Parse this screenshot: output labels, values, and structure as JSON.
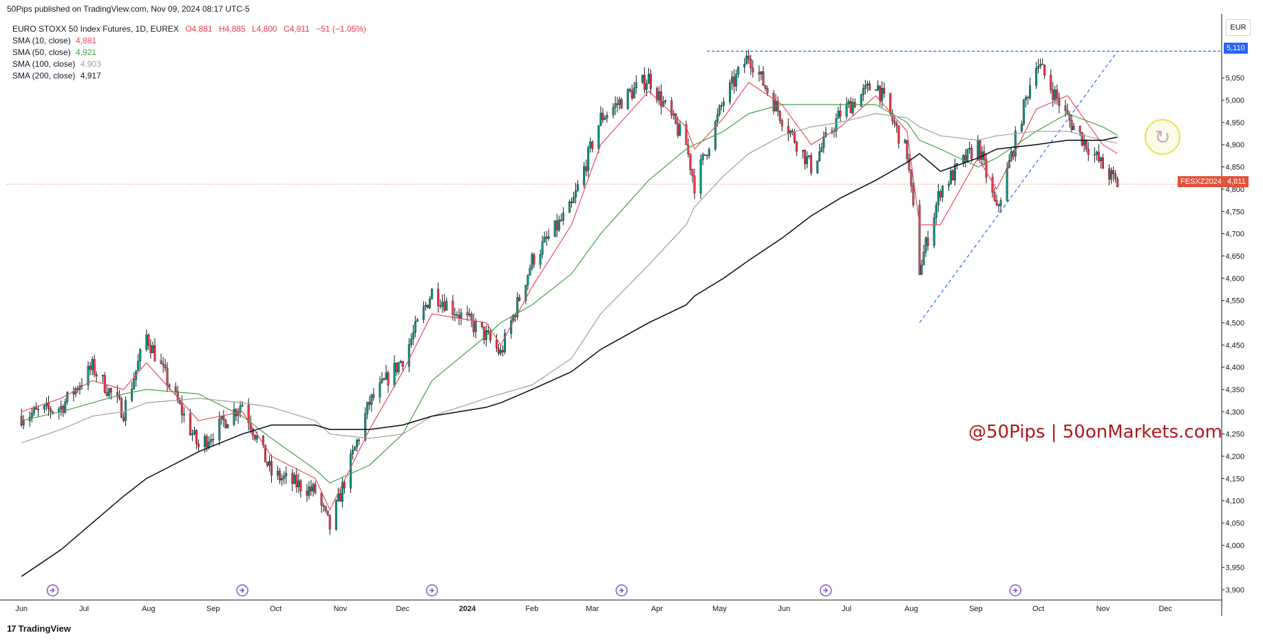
{
  "header": {
    "published": "50Pips published on TradingView.com, Nov 09, 2024 08:17 UTC-5"
  },
  "symbol_line": {
    "name": "EURO STOXX 50 Index Futures, 1D, EUREX",
    "open": "O4,881",
    "high": "H4,885",
    "low": "L4,800",
    "close": "C4,811",
    "change": "−51 (−1.05%)"
  },
  "indicators": [
    {
      "label": "SMA (10, close)",
      "value": "4,881",
      "color": "#e84a5f"
    },
    {
      "label": "SMA (50, close)",
      "value": "4,921",
      "color": "#43a047"
    },
    {
      "label": "SMA (100, close)",
      "value": "4,903",
      "color": "#9e9e9e"
    },
    {
      "label": "SMA (200, close)",
      "value": "4,917",
      "color": "#131722"
    }
  ],
  "currency": "EUR",
  "price_labels": {
    "resistance": "5,110",
    "last_symbol": "FESXZ2024",
    "last_value": "4,811"
  },
  "watermark": "@50Pips | 50onMarkets.com",
  "footer": {
    "logo_mark": "17",
    "logo_text": "TradingView"
  },
  "colors": {
    "up": "#089981",
    "down": "#f23645",
    "dashed": "#2962ff",
    "last": "#e0533d"
  },
  "chart_data": {
    "type": "line",
    "title": "",
    "xlabel": "",
    "ylabel": "",
    "ylim": [
      3880,
      5140
    ],
    "x_ticks": [
      "Jun",
      "Jul",
      "Aug",
      "Sep",
      "Oct",
      "Nov",
      "Dec",
      "2024",
      "Feb",
      "Mar",
      "Apr",
      "May",
      "Jun",
      "Jul",
      "Aug",
      "Sep",
      "Oct",
      "Nov",
      "Dec"
    ],
    "y_ticks": [
      3900,
      3950,
      4000,
      4050,
      4100,
      4150,
      4200,
      4250,
      4300,
      4350,
      4400,
      4450,
      4500,
      4550,
      4600,
      4650,
      4700,
      4750,
      4800,
      4850,
      4900,
      4950,
      5000,
      5050
    ],
    "tick_labels": [
      "3,900",
      "3,950",
      "4,000",
      "4,050",
      "4,100",
      "4,150",
      "4,200",
      "4,250",
      "4,300",
      "4,350",
      "4,400",
      "4,450",
      "4,500",
      "4,550",
      "4,600",
      "4,650",
      "4,700",
      "4,750",
      "4,800",
      "4,850",
      "4,900",
      "4,950",
      "5,000",
      "5,050"
    ],
    "price_series": {
      "x": [
        "2023-06-01",
        "2023-06-20",
        "2023-07-05",
        "2023-07-20",
        "2023-07-31",
        "2023-08-25",
        "2023-09-15",
        "2023-09-29",
        "2023-10-20",
        "2023-10-27",
        "2023-11-15",
        "2023-12-01",
        "2023-12-15",
        "2024-01-10",
        "2024-01-17",
        "2024-02-01",
        "2024-02-20",
        "2024-03-05",
        "2024-03-28",
        "2024-04-15",
        "2024-04-19",
        "2024-05-03",
        "2024-05-15",
        "2024-05-31",
        "2024-06-14",
        "2024-06-28",
        "2024-07-15",
        "2024-07-30",
        "2024-08-05",
        "2024-08-15",
        "2024-09-02",
        "2024-09-11",
        "2024-09-30",
        "2024-10-15",
        "2024-11-01",
        "2024-11-08"
      ],
      "values": [
        4290,
        4310,
        4400,
        4300,
        4470,
        4220,
        4320,
        4160,
        4120,
        4040,
        4320,
        4420,
        4570,
        4470,
        4430,
        4640,
        4760,
        4960,
        5050,
        4900,
        4810,
        5000,
        5100,
        4960,
        4850,
        4970,
        5040,
        4880,
        4620,
        4800,
        4900,
        4750,
        5090,
        4960,
        4850,
        4811
      ]
    },
    "series": [
      {
        "name": "SMA (10, close)",
        "values_note": "",
        "values": [
          4300,
          4330,
          4370,
          4350,
          4410,
          4280,
          4300,
          4200,
          4150,
          4080,
          4260,
          4390,
          4520,
          4500,
          4450,
          4580,
          4720,
          4900,
          5020,
          4940,
          4890,
          4960,
          5040,
          4990,
          4900,
          4940,
          5010,
          4930,
          4720,
          4720,
          4870,
          4800,
          4980,
          5010,
          4900,
          4880
        ]
      },
      {
        "name": "SMA (50, close)",
        "values": [
          4280,
          4300,
          4320,
          4340,
          4350,
          4340,
          4290,
          4240,
          4170,
          4140,
          4180,
          4250,
          4370,
          4470,
          4500,
          4540,
          4610,
          4700,
          4820,
          4890,
          4900,
          4930,
          4970,
          4990,
          4990,
          4990,
          4990,
          4950,
          4910,
          4890,
          4850,
          4870,
          4930,
          4970,
          4940,
          4921
        ]
      },
      {
        "name": "SMA (100, close)",
        "values": [
          4230,
          4260,
          4290,
          4300,
          4320,
          4330,
          4320,
          4310,
          4280,
          4250,
          4240,
          4250,
          4290,
          4330,
          4340,
          4360,
          4420,
          4520,
          4630,
          4720,
          4760,
          4830,
          4880,
          4920,
          4940,
          4950,
          4970,
          4960,
          4940,
          4920,
          4910,
          4920,
          4930,
          4930,
          4910,
          4903
        ]
      },
      {
        "name": "SMA (200, close)",
        "values": [
          3930,
          3990,
          4050,
          4110,
          4150,
          4210,
          4250,
          4270,
          4270,
          4260,
          4260,
          4270,
          4290,
          4310,
          4320,
          4350,
          4390,
          4440,
          4500,
          4540,
          4560,
          4600,
          4640,
          4690,
          4740,
          4780,
          4820,
          4860,
          4880,
          4840,
          4870,
          4890,
          4900,
          4910,
          4910,
          4917
        ]
      }
    ],
    "annotations": {
      "resistance": 5110,
      "last_price": 4811,
      "trendline": [
        [
          "2024-08-05",
          4500
        ],
        [
          "2024-11-08",
          5110
        ]
      ]
    },
    "grid": false,
    "legend": "top-left"
  }
}
